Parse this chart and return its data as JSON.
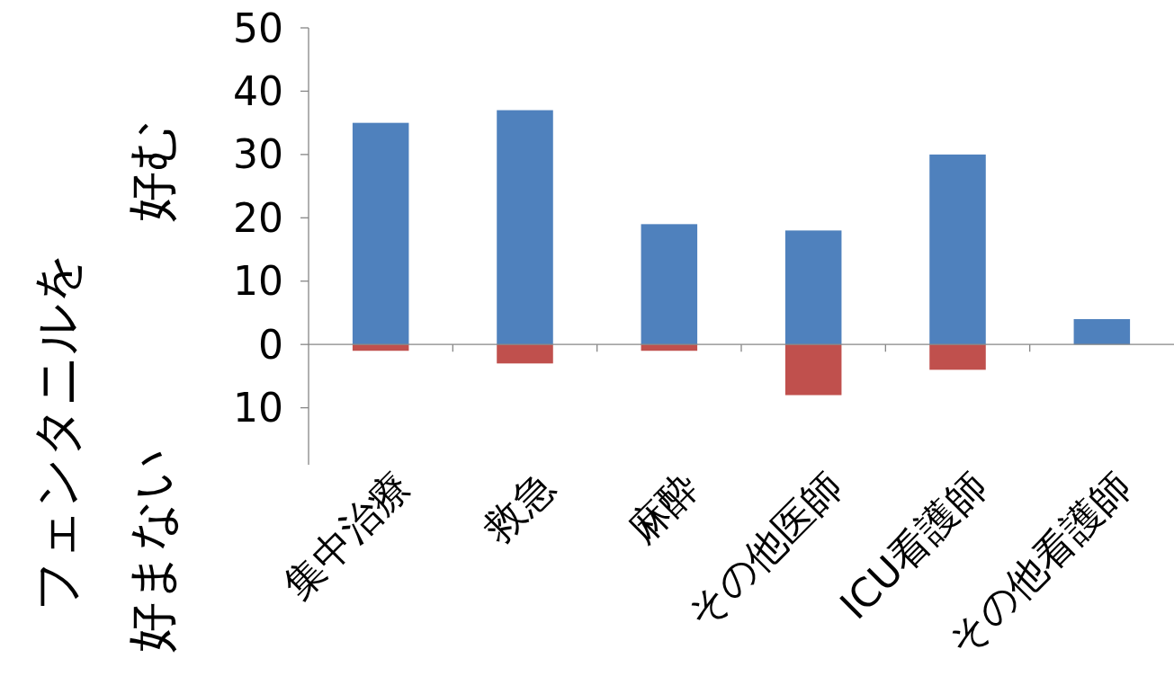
{
  "chart_data": {
    "type": "bar",
    "stacked": true,
    "categories": [
      "集中治療",
      "救急",
      "麻酔",
      "その他医師",
      "ICU看護師",
      "その他看護師"
    ],
    "series": [
      {
        "color": "#4f81bd",
        "values": [
          35,
          37,
          19,
          18,
          30,
          4
        ]
      },
      {
        "color": "#c0504d",
        "values": [
          -1,
          -3,
          -1,
          -8,
          -4,
          0
        ]
      }
    ],
    "ylim": [
      -19,
      50
    ],
    "yticks": [
      50,
      40,
      30,
      20,
      10,
      0,
      {
        "value": -10,
        "label": "10"
      }
    ],
    "ylabel": "フェンタニルを",
    "annotations": [
      "好む",
      "好まない"
    ]
  }
}
